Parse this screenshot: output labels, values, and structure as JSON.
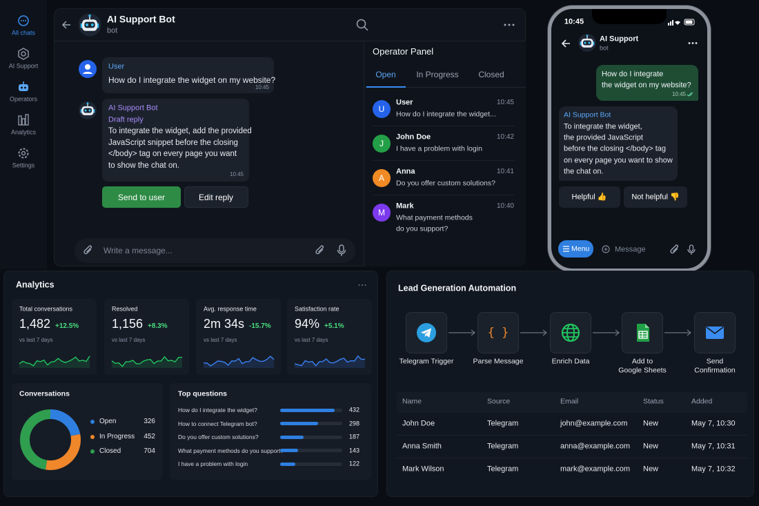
{
  "sidebar": {
    "items": [
      "All chats",
      "AI Support",
      "Operators",
      "Analytics",
      "Settings"
    ]
  },
  "chat": {
    "title": "AI Support Bot",
    "subtitle": "bot",
    "user_message": {
      "sender": "User",
      "text": "How do I integrate the widget on my website?",
      "time": "10:45"
    },
    "bot_message": {
      "sender": "AI Support Bot",
      "status": "Draft reply",
      "lines": [
        "To integrate the widget, add the provided",
        "JavaScript snippet before the closing",
        "</body> tag on every page you want",
        "to show the chat on."
      ],
      "time": "10:45"
    },
    "actions": [
      "Send to user",
      "Edit reply"
    ],
    "placeholder": "Write a message..."
  },
  "operator_panel": {
    "title": "Operator Panel",
    "tabs": [
      "Open",
      "In Progress",
      "Closed"
    ],
    "conversations": [
      {
        "initial": "U",
        "name": "User",
        "time": "10:45",
        "lines": [
          "How do I integrate the widget..."
        ],
        "color": "#2563eb"
      },
      {
        "initial": "J",
        "name": "John Doe",
        "time": "10:42",
        "lines": [
          "I have a problem with login"
        ],
        "color": "#23a047"
      },
      {
        "initial": "A",
        "name": "Anna",
        "time": "10:41",
        "lines": [
          "Do you offer custom solutions?"
        ],
        "color": "#f08a24"
      },
      {
        "initial": "M",
        "name": "Mark",
        "time": "10:40",
        "lines": [
          "What payment methods",
          "do you support?"
        ],
        "color": "#7c3aed"
      }
    ]
  },
  "phone": {
    "clock": "10:45",
    "title": "AI Support",
    "subtitle": "bot",
    "user_lines": [
      "How do I integrate",
      "the widget on my website?"
    ],
    "user_time": "10:45",
    "bot_name": "AI Support Bot",
    "bot_lines": [
      "To integrate the widget,",
      "the provided JavaScript",
      "before the closing </body> tag",
      "on every page you want to show",
      "the chat on."
    ],
    "buttons": [
      "Helpful 👍",
      "Not helpful 👎"
    ],
    "menu": "Menu",
    "placeholder": "Message"
  },
  "analytics": {
    "title": "Analytics",
    "kpis": [
      {
        "label": "Total conversations",
        "value": "1,482",
        "change": "+12.5%",
        "note": "vs last 7 days",
        "color": "#22c55e"
      },
      {
        "label": "Resolved",
        "value": "1,156",
        "change": "+8.3%",
        "note": "vs last 7 days",
        "color": "#22c55e"
      },
      {
        "label": "Avg. response time",
        "value": "2m 34s",
        "change": "-15.7%",
        "note": "vs last 7 days",
        "color": "#3b82f6"
      },
      {
        "label": "Satisfaction rate",
        "value": "94%",
        "change": "+5.1%",
        "note": "vs last 7 days",
        "color": "#3b82f6"
      }
    ],
    "conversations": {
      "title": "Conversations",
      "type": "donut",
      "series": [
        {
          "name": "Open",
          "value": 326,
          "color": "#2f7fe0"
        },
        {
          "name": "In Progress",
          "value": 452,
          "color": "#f0872a"
        },
        {
          "name": "Closed",
          "value": 704,
          "color": "#2f9e4f"
        }
      ]
    },
    "top_questions": {
      "title": "Top questions",
      "type": "bar",
      "xlim": [
        0,
        490
      ],
      "color": "#2f7fe0",
      "items": [
        {
          "question": "How do I integrate the widget?",
          "count": 432
        },
        {
          "question": "How to connect Telegram bot?",
          "count": 298
        },
        {
          "question": "Do you offer custom solutions?",
          "count": 187
        },
        {
          "question": "What payment methods do you support?",
          "count": 143
        },
        {
          "question": "I have a problem with login",
          "count": 122
        }
      ]
    }
  },
  "lead_generation": {
    "title": "Lead Generation Automation",
    "steps": [
      [
        "Telegram Trigger"
      ],
      [
        "Parse Message"
      ],
      [
        "Enrich Data"
      ],
      [
        "Add to",
        "Google Sheets"
      ],
      [
        "Send",
        "Confirmation"
      ]
    ],
    "table": {
      "columns": [
        "Name",
        "Source",
        "Email",
        "Status",
        "Added"
      ],
      "rows": [
        [
          "John Doe",
          "Telegram",
          "john@example.com",
          "New",
          "May 7, 10:30"
        ],
        [
          "Anna Smith",
          "Telegram",
          "anna@example.com",
          "New",
          "May 7, 10:31"
        ],
        [
          "Mark Wilson",
          "Telegram",
          "mark@example.com",
          "New",
          "May 7, 10:32"
        ]
      ]
    }
  }
}
